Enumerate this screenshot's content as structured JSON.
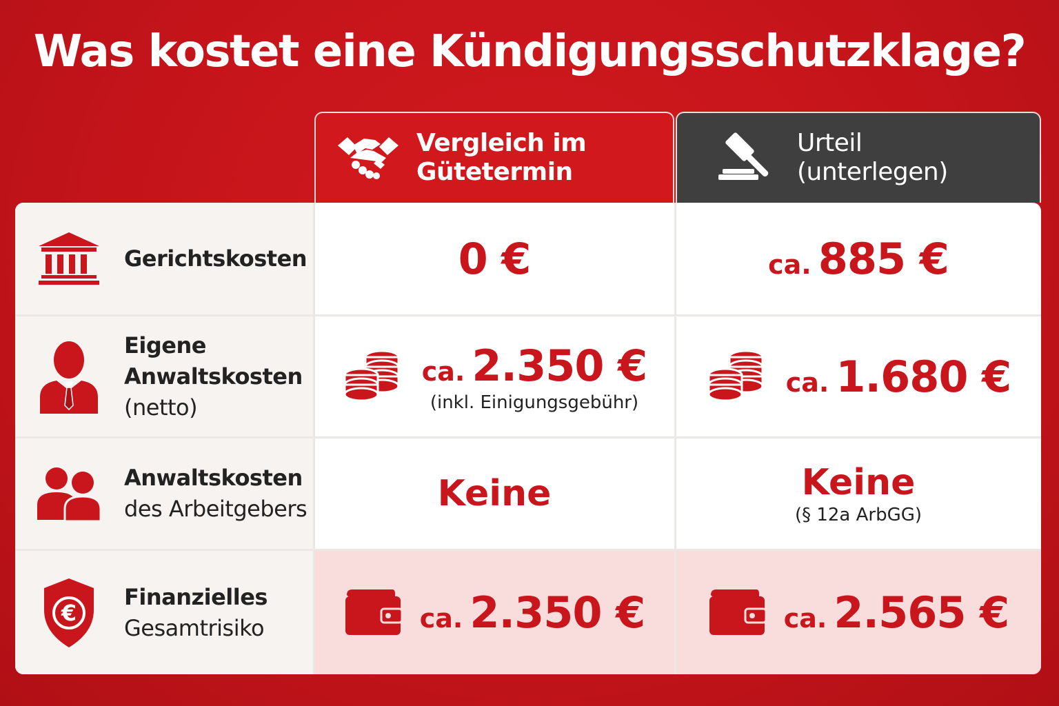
{
  "title": "Was kostet eine Kündigungsschutzklage?",
  "columns": {
    "vergleich": {
      "line1": "Vergleich im",
      "line2": "Gütetermin",
      "icon": "handshake-icon"
    },
    "urteil": {
      "line1": "Urteil",
      "line2": "(unterlegen)",
      "icon": "gavel-icon"
    }
  },
  "rows": [
    {
      "label": "Gerichtskosten",
      "icon": "courthouse-icon",
      "vergleich": {
        "value": "0 €"
      },
      "urteil": {
        "prefix": "ca.",
        "value": "885 €"
      }
    },
    {
      "label_line1": "Eigene",
      "label_line2": "Anwaltskosten",
      "label_line3": "(netto)",
      "icon": "lawyer-icon",
      "vergleich": {
        "prefix": "ca.",
        "value": "2.350 €",
        "note": "(inkl. Einigungsgebühr)",
        "icon": "coins-icon"
      },
      "urteil": {
        "prefix": "ca.",
        "value": "1.680 €",
        "icon": "coins-icon"
      }
    },
    {
      "label_line1": "Anwaltskosten",
      "label_line2": "des Arbeitgebers",
      "icon": "people-icon",
      "vergleich": {
        "value": "Keine"
      },
      "urteil": {
        "value": "Keine",
        "note": "(§ 12a ArbGG)"
      }
    },
    {
      "label_line1": "Finanzielles",
      "label_line2": "Gesamtrisiko",
      "icon": "euro-shield-icon",
      "vergleich": {
        "prefix": "ca.",
        "value": "2.350 €",
        "icon": "wallet-icon"
      },
      "urteil": {
        "prefix": "ca.",
        "value": "2.565 €",
        "icon": "wallet-icon"
      }
    }
  ],
  "colors": {
    "brand_red": "#c8161c",
    "header_dark": "#3f3f3f",
    "total_bg": "#f9dcdc"
  }
}
